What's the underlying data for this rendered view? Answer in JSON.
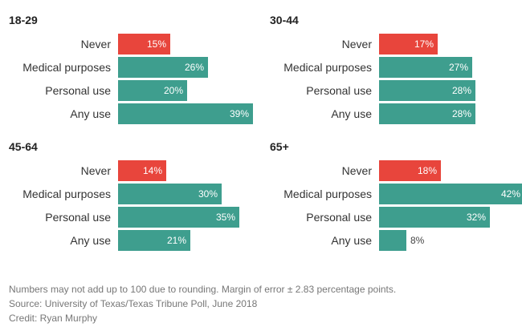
{
  "colors": {
    "never": "#e8453c",
    "other": "#3e9e8e"
  },
  "chart_data": [
    {
      "type": "bar",
      "title": "18-29",
      "categories": [
        "Never",
        "Medical purposes",
        "Personal use",
        "Any use"
      ],
      "values": [
        15,
        26,
        20,
        39
      ],
      "labels": [
        "15%",
        "26%",
        "20%",
        "39%"
      ]
    },
    {
      "type": "bar",
      "title": "30-44",
      "categories": [
        "Never",
        "Medical purposes",
        "Personal use",
        "Any use"
      ],
      "values": [
        17,
        27,
        28,
        28
      ],
      "labels": [
        "17%",
        "27%",
        "28%",
        "28%"
      ]
    },
    {
      "type": "bar",
      "title": "45-64",
      "categories": [
        "Never",
        "Medical purposes",
        "Personal use",
        "Any use"
      ],
      "values": [
        14,
        30,
        35,
        21
      ],
      "labels": [
        "14%",
        "30%",
        "35%",
        "21%"
      ]
    },
    {
      "type": "bar",
      "title": "65+",
      "categories": [
        "Never",
        "Medical purposes",
        "Personal use",
        "Any use"
      ],
      "values": [
        18,
        42,
        32,
        8
      ],
      "labels": [
        "18%",
        "42%",
        "32%",
        "8%"
      ]
    }
  ],
  "footer": {
    "note": "Numbers may not add up to 100 due to rounding. Margin of error ± 2.83 percentage points.",
    "source": "Source: University of Texas/Texas Tribune Poll, June 2018",
    "credit": "Credit: Ryan Murphy"
  }
}
